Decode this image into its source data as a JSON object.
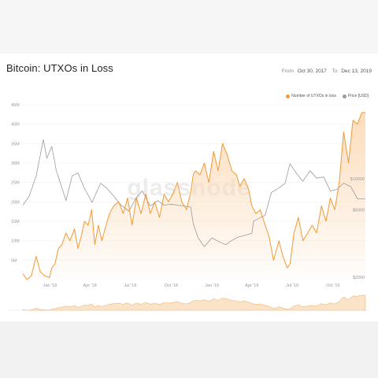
{
  "header": {
    "title": "Bitcoin: UTXOs in Loss",
    "range_from_label": "From",
    "range_from": "Oct 30, 2017",
    "range_to_label": "To",
    "range_to": "Dec 13, 2019"
  },
  "watermark": "glassnode",
  "colors": {
    "utxo": "#f09a36",
    "price": "#9a9a9a",
    "fill": "#fbd9b4"
  },
  "chart_data": {
    "type": "line",
    "title": "Bitcoin: UTXOs in Loss",
    "x_range": [
      "2017-10-30",
      "2019-12-13"
    ],
    "x_ticks": [
      "Jan '18",
      "Apr '18",
      "Jul '18",
      "Oct '18",
      "Jan '19",
      "Apr '19",
      "Jul '19",
      "Oct '19"
    ],
    "y_left_ticks": [
      "5M",
      "10M",
      "15M",
      "20M",
      "25M",
      "30M",
      "35M",
      "40M",
      "45M"
    ],
    "y_left_range": [
      0,
      45000000
    ],
    "y_right_ticks": [
      "$2000",
      "$6000",
      "$10000"
    ],
    "y_right_scale": "log",
    "legend": [
      "Number of UTXOs in loss",
      "Price [USD]"
    ],
    "legend_position": "top-right",
    "series": [
      {
        "name": "Number of UTXOs in loss",
        "axis": "left",
        "x": [
          "2017-11-01",
          "2017-11-10",
          "2017-11-20",
          "2017-12-01",
          "2017-12-10",
          "2017-12-20",
          "2017-12-31",
          "2018-01-05",
          "2018-01-12",
          "2018-01-20",
          "2018-01-28",
          "2018-02-06",
          "2018-02-15",
          "2018-02-25",
          "2018-03-05",
          "2018-03-12",
          "2018-03-20",
          "2018-03-28",
          "2018-04-05",
          "2018-04-12",
          "2018-04-20",
          "2018-04-28",
          "2018-05-05",
          "2018-05-15",
          "2018-05-25",
          "2018-06-05",
          "2018-06-15",
          "2018-06-25",
          "2018-07-05",
          "2018-07-15",
          "2018-07-25",
          "2018-08-05",
          "2018-08-15",
          "2018-08-25",
          "2018-09-05",
          "2018-09-15",
          "2018-09-25",
          "2018-10-05",
          "2018-10-15",
          "2018-10-25",
          "2018-11-05",
          "2018-11-15",
          "2018-11-20",
          "2018-11-25",
          "2018-12-05",
          "2018-12-15",
          "2018-12-25",
          "2019-01-05",
          "2019-01-15",
          "2019-01-25",
          "2019-02-05",
          "2019-02-15",
          "2019-02-25",
          "2019-03-05",
          "2019-03-15",
          "2019-03-25",
          "2019-04-01",
          "2019-04-10",
          "2019-04-20",
          "2019-05-01",
          "2019-05-10",
          "2019-05-20",
          "2019-06-01",
          "2019-06-10",
          "2019-06-20",
          "2019-06-26",
          "2019-07-05",
          "2019-07-15",
          "2019-07-25",
          "2019-08-05",
          "2019-08-15",
          "2019-08-25",
          "2019-09-05",
          "2019-09-15",
          "2019-09-25",
          "2019-10-05",
          "2019-10-15",
          "2019-10-25",
          "2019-11-05",
          "2019-11-15",
          "2019-11-25",
          "2019-12-05",
          "2019-12-13"
        ],
        "values": [
          1500000,
          0,
          1000000,
          6000000,
          2000000,
          1000000,
          500000,
          3000000,
          4000000,
          8000000,
          9000000,
          12000000,
          10000000,
          13000000,
          8000000,
          11000000,
          15000000,
          14000000,
          18000000,
          9000000,
          14000000,
          10000000,
          13000000,
          17000000,
          19000000,
          20000000,
          17000000,
          21000000,
          14000000,
          21000000,
          17000000,
          22000000,
          17000000,
          20000000,
          16000000,
          22000000,
          20000000,
          22000000,
          25000000,
          20000000,
          18000000,
          23000000,
          27000000,
          28000000,
          27000000,
          30000000,
          25000000,
          33000000,
          28000000,
          35000000,
          32000000,
          28000000,
          27000000,
          24000000,
          26000000,
          23000000,
          19000000,
          17000000,
          18000000,
          14000000,
          11000000,
          5000000,
          10000000,
          6000000,
          3000000,
          4000000,
          12000000,
          16000000,
          10000000,
          12000000,
          14000000,
          12000000,
          19000000,
          15000000,
          21000000,
          18000000,
          25000000,
          38000000,
          30000000,
          41000000,
          40000000,
          43000000,
          43000000
        ]
      },
      {
        "name": "Price [USD]",
        "axis": "right",
        "x": [
          "2017-11-01",
          "2017-11-15",
          "2017-12-01",
          "2017-12-17",
          "2017-12-25",
          "2018-01-05",
          "2018-01-15",
          "2018-02-06",
          "2018-02-20",
          "2018-03-05",
          "2018-03-20",
          "2018-04-06",
          "2018-04-25",
          "2018-05-10",
          "2018-05-25",
          "2018-06-10",
          "2018-06-28",
          "2018-07-15",
          "2018-07-28",
          "2018-08-15",
          "2018-09-01",
          "2018-09-15",
          "2018-10-01",
          "2018-10-15",
          "2018-11-01",
          "2018-11-14",
          "2018-11-20",
          "2018-12-01",
          "2018-12-15",
          "2019-01-01",
          "2019-01-15",
          "2019-02-01",
          "2019-02-15",
          "2019-03-01",
          "2019-03-15",
          "2019-04-01",
          "2019-04-05",
          "2019-04-20",
          "2019-05-01",
          "2019-05-15",
          "2019-06-01",
          "2019-06-15",
          "2019-06-26",
          "2019-07-10",
          "2019-07-25",
          "2019-08-10",
          "2019-08-25",
          "2019-09-10",
          "2019-09-25",
          "2019-10-10",
          "2019-10-25",
          "2019-11-10",
          "2019-11-25",
          "2019-12-13"
        ],
        "values": [
          6500,
          7500,
          10500,
          19000,
          14000,
          17000,
          11500,
          7000,
          10500,
          11000,
          8500,
          6800,
          9300,
          8500,
          7500,
          6500,
          5900,
          7400,
          8200,
          6400,
          7000,
          6500,
          6600,
          6500,
          6400,
          6300,
          4800,
          3800,
          3300,
          3800,
          3600,
          3400,
          3650,
          3850,
          3950,
          4100,
          5000,
          5300,
          5500,
          8000,
          8600,
          9300,
          12800,
          11000,
          9600,
          11400,
          10100,
          10300,
          8200,
          8400,
          9300,
          8800,
          7200,
          7200
        ]
      }
    ]
  }
}
